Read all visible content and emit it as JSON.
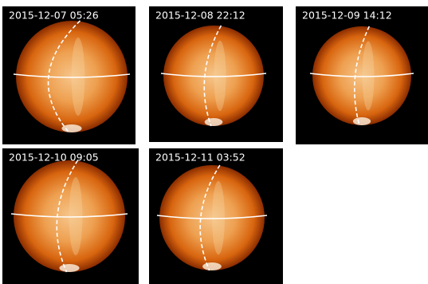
{
  "panels": [
    {
      "label": "2015-12-07 05:26"
    },
    {
      "label": "2015-12-08 22:12"
    },
    {
      "label": "2015-12-09 14:12"
    },
    {
      "label": "2015-12-10 09:05"
    },
    {
      "label": "2015-12-11 03:52"
    }
  ]
}
